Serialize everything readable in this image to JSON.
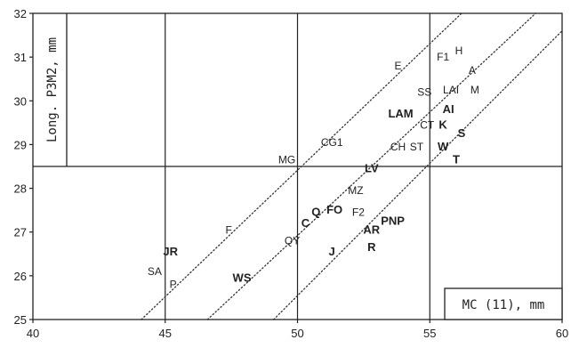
{
  "chart_data": {
    "type": "scatter",
    "title": "",
    "xlabel": "MC (11), mm",
    "ylabel": "Long. P3M2, mm",
    "xlim": [
      40,
      60
    ],
    "ylim": [
      25,
      32
    ],
    "xticks": [
      40,
      45,
      50,
      55,
      60
    ],
    "yticks": [
      25,
      26,
      27,
      28,
      29,
      30,
      31,
      32
    ],
    "grid": {
      "vertical": [
        45,
        50,
        55
      ],
      "horizontal": [
        28.5
      ]
    },
    "points": [
      {
        "label": "H",
        "x": 56.1,
        "y": 31.15,
        "bold": false
      },
      {
        "label": "E",
        "x": 53.8,
        "y": 30.8,
        "bold": false
      },
      {
        "label": "F1",
        "x": 55.5,
        "y": 31.0,
        "bold": false
      },
      {
        "label": "A",
        "x": 56.6,
        "y": 30.7,
        "bold": false
      },
      {
        "label": "SS",
        "x": 54.8,
        "y": 30.2,
        "bold": false
      },
      {
        "label": "LAI",
        "x": 55.8,
        "y": 30.25,
        "bold": false
      },
      {
        "label": "M",
        "x": 56.7,
        "y": 30.25,
        "bold": false
      },
      {
        "label": "AI",
        "x": 55.7,
        "y": 29.8,
        "bold": true
      },
      {
        "label": "LAM",
        "x": 53.9,
        "y": 29.7,
        "bold": true
      },
      {
        "label": "CT",
        "x": 54.9,
        "y": 29.45,
        "bold": false
      },
      {
        "label": "K",
        "x": 55.5,
        "y": 29.45,
        "bold": true
      },
      {
        "label": "S",
        "x": 56.2,
        "y": 29.25,
        "bold": true
      },
      {
        "label": "CG1",
        "x": 51.3,
        "y": 29.05,
        "bold": false
      },
      {
        "label": "CH",
        "x": 53.8,
        "y": 28.95,
        "bold": false
      },
      {
        "label": "ST",
        "x": 54.5,
        "y": 28.95,
        "bold": false
      },
      {
        "label": "W",
        "x": 55.5,
        "y": 28.95,
        "bold": true
      },
      {
        "label": "MG",
        "x": 49.6,
        "y": 28.65,
        "bold": false
      },
      {
        "label": "T",
        "x": 56.0,
        "y": 28.65,
        "bold": true
      },
      {
        "label": "LV",
        "x": 52.8,
        "y": 28.45,
        "bold": true
      },
      {
        "label": "MZ",
        "x": 52.2,
        "y": 27.95,
        "bold": false
      },
      {
        "label": "Q",
        "x": 50.7,
        "y": 27.45,
        "bold": true
      },
      {
        "label": "FO",
        "x": 51.4,
        "y": 27.5,
        "bold": true
      },
      {
        "label": "F2",
        "x": 52.3,
        "y": 27.45,
        "bold": false
      },
      {
        "label": "PNP",
        "x": 53.6,
        "y": 27.25,
        "bold": true
      },
      {
        "label": "AR",
        "x": 52.8,
        "y": 27.05,
        "bold": true
      },
      {
        "label": "C",
        "x": 50.3,
        "y": 27.2,
        "bold": true
      },
      {
        "label": "F",
        "x": 47.4,
        "y": 27.05,
        "bold": false
      },
      {
        "label": "QY",
        "x": 49.8,
        "y": 26.8,
        "bold": false
      },
      {
        "label": "R",
        "x": 52.8,
        "y": 26.65,
        "bold": true
      },
      {
        "label": "J",
        "x": 51.3,
        "y": 26.55,
        "bold": true
      },
      {
        "label": "JR",
        "x": 45.2,
        "y": 26.55,
        "bold": true
      },
      {
        "label": "SA",
        "x": 44.6,
        "y": 26.1,
        "bold": false
      },
      {
        "label": "P",
        "x": 45.3,
        "y": 25.8,
        "bold": false
      },
      {
        "label": "WS",
        "x": 47.9,
        "y": 25.95,
        "bold": true
      }
    ],
    "dotted_lines": [
      {
        "from": [
          44.1,
          25.0
        ],
        "to": [
          56.2,
          32.0
        ]
      },
      {
        "from": [
          46.6,
          25.0
        ],
        "to": [
          59.0,
          32.0
        ]
      },
      {
        "from": [
          49.1,
          25.0
        ],
        "to": [
          60.0,
          31.6
        ]
      }
    ]
  }
}
